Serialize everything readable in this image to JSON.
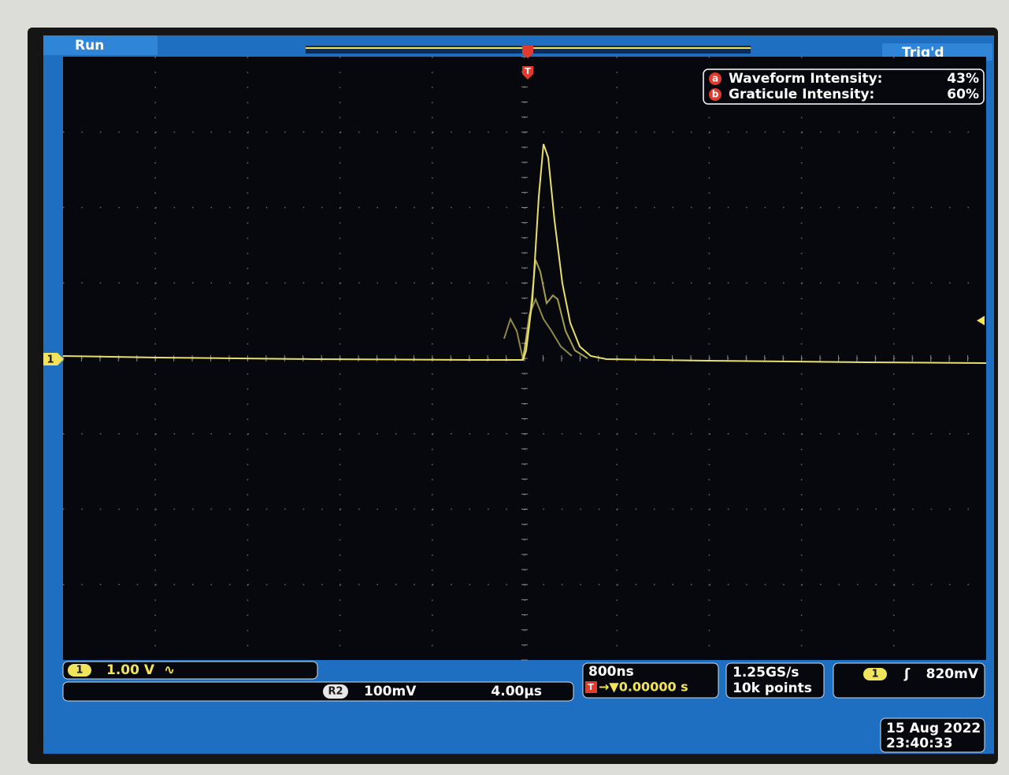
{
  "status": {
    "run": "Run",
    "trigger": "Trig'd",
    "trigger_marker": "T",
    "ground_marker": "1"
  },
  "intensity": {
    "rows": [
      {
        "key": "a",
        "label": "Waveform Intensity:",
        "value": "43%"
      },
      {
        "key": "b",
        "label": "Graticule Intensity:",
        "value": "60%"
      }
    ]
  },
  "channel": {
    "badge": "1",
    "scale": "1.00 V",
    "coupling": "∿"
  },
  "reference": {
    "badge": "R2",
    "scale": "100mV",
    "time_scale": "4.00µs"
  },
  "timebase": {
    "scale": "800ns",
    "marker": "T",
    "delay": "→▼0.00000 s"
  },
  "acquisition": {
    "rate": "1.25GS/s",
    "length": "10k points"
  },
  "trigger": {
    "badge": "1",
    "slope": "ʃ",
    "level": "820mV"
  },
  "datetime": {
    "date": "15 Aug 2022",
    "time": "23:40:33"
  }
}
